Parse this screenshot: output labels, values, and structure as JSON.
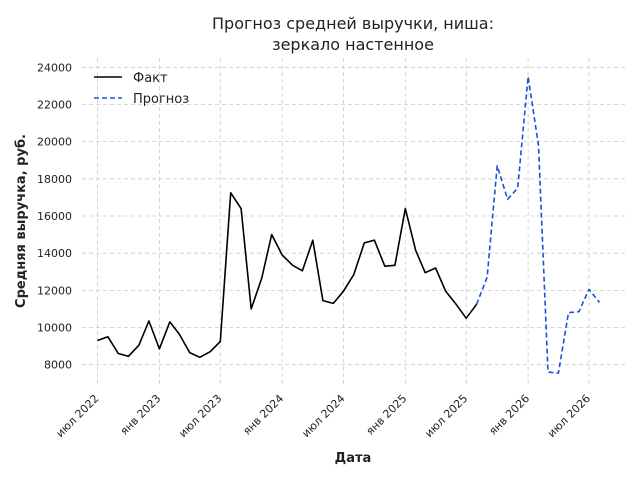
{
  "chart_data": {
    "type": "line",
    "title": [
      "Прогноз средней выручки, ниша:",
      "зеркало настенное"
    ],
    "xlabel": "Дата",
    "ylabel": "Средняя выручка, руб.",
    "ylim": [
      6800,
      24500
    ],
    "yticks": [
      8000,
      10000,
      12000,
      14000,
      16000,
      18000,
      20000,
      22000,
      24000
    ],
    "x_range": [
      "2022-05-16",
      "2026-10-16"
    ],
    "xticks": [
      {
        "date": "2022-07-01",
        "label": "июл 2022"
      },
      {
        "date": "2023-01-01",
        "label": "янв 2023"
      },
      {
        "date": "2023-07-01",
        "label": "июл 2023"
      },
      {
        "date": "2024-01-01",
        "label": "янв 2024"
      },
      {
        "date": "2024-07-01",
        "label": "июл 2024"
      },
      {
        "date": "2025-01-01",
        "label": "янв 2025"
      },
      {
        "date": "2025-07-01",
        "label": "июл 2025"
      },
      {
        "date": "2026-01-01",
        "label": "янв 2026"
      },
      {
        "date": "2026-07-01",
        "label": "июл 2026"
      }
    ],
    "grid": true,
    "legend_position": "top-left",
    "series": [
      {
        "name": "Факт",
        "color": "#000000",
        "style": "solid",
        "points": [
          {
            "x": "2022-07-01",
            "y": 9300
          },
          {
            "x": "2022-08-01",
            "y": 9500
          },
          {
            "x": "2022-09-01",
            "y": 8600
          },
          {
            "x": "2022-10-01",
            "y": 8450
          },
          {
            "x": "2022-11-01",
            "y": 9050
          },
          {
            "x": "2022-12-01",
            "y": 10350
          },
          {
            "x": "2023-01-01",
            "y": 8850
          },
          {
            "x": "2023-02-01",
            "y": 10300
          },
          {
            "x": "2023-03-01",
            "y": 9650
          },
          {
            "x": "2023-04-01",
            "y": 8650
          },
          {
            "x": "2023-05-01",
            "y": 8400
          },
          {
            "x": "2023-06-01",
            "y": 8700
          },
          {
            "x": "2023-07-01",
            "y": 9250
          },
          {
            "x": "2023-08-01",
            "y": 17250
          },
          {
            "x": "2023-09-01",
            "y": 16400
          },
          {
            "x": "2023-10-01",
            "y": 11000
          },
          {
            "x": "2023-11-01",
            "y": 12650
          },
          {
            "x": "2023-12-01",
            "y": 15000
          },
          {
            "x": "2024-01-01",
            "y": 13900
          },
          {
            "x": "2024-02-01",
            "y": 13350
          },
          {
            "x": "2024-03-01",
            "y": 13050
          },
          {
            "x": "2024-04-01",
            "y": 14700
          },
          {
            "x": "2024-05-01",
            "y": 11450
          },
          {
            "x": "2024-06-01",
            "y": 11300
          },
          {
            "x": "2024-07-01",
            "y": 11950
          },
          {
            "x": "2024-08-01",
            "y": 12850
          },
          {
            "x": "2024-09-01",
            "y": 14550
          },
          {
            "x": "2024-10-01",
            "y": 14700
          },
          {
            "x": "2024-11-01",
            "y": 13300
          },
          {
            "x": "2024-12-01",
            "y": 13350
          },
          {
            "x": "2025-01-01",
            "y": 16400
          },
          {
            "x": "2025-02-01",
            "y": 14150
          },
          {
            "x": "2025-03-01",
            "y": 12950
          },
          {
            "x": "2025-04-01",
            "y": 13200
          },
          {
            "x": "2025-05-01",
            "y": 11950
          },
          {
            "x": "2025-06-01",
            "y": 11250
          },
          {
            "x": "2025-07-01",
            "y": 10500
          },
          {
            "x": "2025-08-01",
            "y": 11250
          }
        ]
      },
      {
        "name": "Прогноз",
        "color": "#1f4fd6",
        "style": "dashed",
        "points": [
          {
            "x": "2025-08-01",
            "y": 11250
          },
          {
            "x": "2025-09-01",
            "y": 12700
          },
          {
            "x": "2025-10-01",
            "y": 18700
          },
          {
            "x": "2025-11-01",
            "y": 16900
          },
          {
            "x": "2025-12-01",
            "y": 17500
          },
          {
            "x": "2026-01-01",
            "y": 23500
          },
          {
            "x": "2026-02-01",
            "y": 19800
          },
          {
            "x": "2026-03-01",
            "y": 7600
          },
          {
            "x": "2026-04-01",
            "y": 7550
          },
          {
            "x": "2026-05-01",
            "y": 10800
          },
          {
            "x": "2026-06-01",
            "y": 10850
          },
          {
            "x": "2026-07-01",
            "y": 12050
          },
          {
            "x": "2026-08-01",
            "y": 11350
          }
        ]
      }
    ]
  }
}
